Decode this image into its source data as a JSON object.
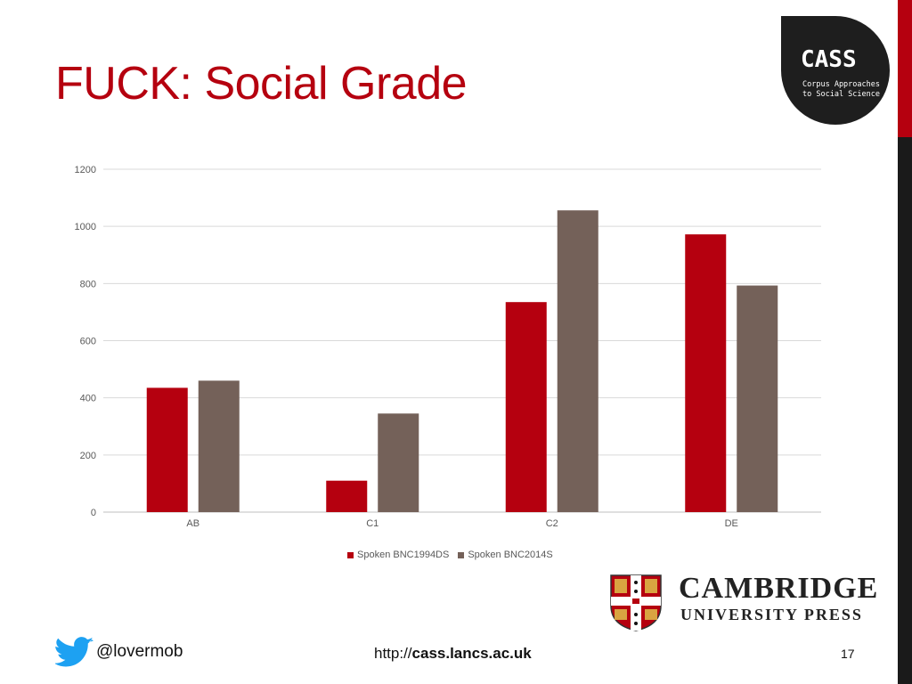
{
  "slide": {
    "title": "FUCK: Social Grade",
    "handle": "@lovermob",
    "url_prefix": "http://",
    "url_domain": "cass.lancs.ac.uk",
    "page_number": "17",
    "accent_color": "#b5000f"
  },
  "cass_logo": {
    "name": "CASS",
    "line1": "Corpus Approaches",
    "line2": "to Social Science"
  },
  "cup_logo": {
    "name": "CAMBRIDGE",
    "subtitle": "UNIVERSITY PRESS"
  },
  "icons": {
    "twitter": "twitter-bird-icon",
    "crest": "cambridge-crest-icon"
  },
  "chart_data": {
    "type": "bar",
    "categories": [
      "AB",
      "C1",
      "C2",
      "DE"
    ],
    "series": [
      {
        "name": "Spoken BNC1994DS",
        "values": [
          435,
          110,
          735,
          972
        ],
        "color": "#b5000f"
      },
      {
        "name": "Spoken BNC2014S",
        "values": [
          460,
          345,
          1056,
          793
        ],
        "color": "#746159"
      }
    ],
    "title": "",
    "xlabel": "",
    "ylabel": "",
    "ylim": [
      0,
      1200
    ],
    "yticks": [
      0,
      200,
      400,
      600,
      800,
      1000,
      1200
    ],
    "grid": true,
    "legend": "bottom"
  }
}
